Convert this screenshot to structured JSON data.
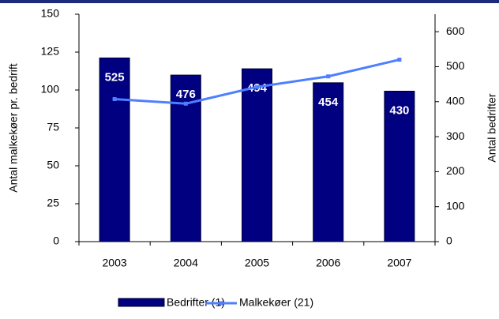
{
  "chart_data": {
    "type": "combo",
    "categories": [
      "2003",
      "2004",
      "2005",
      "2006",
      "2007"
    ],
    "series": [
      {
        "name": "Bedrifter (1)",
        "type": "bar",
        "axis": "y2",
        "color": "#000080",
        "values": [
          525,
          476,
          494,
          454,
          430
        ]
      },
      {
        "name": "Malkekøer (21)",
        "type": "line",
        "axis": "y",
        "color": "#4d7fff",
        "values": [
          94,
          91,
          102,
          109,
          120
        ]
      }
    ],
    "ylabel": "Antal malkekøer pr. bedrift",
    "y2label": "Antal bedrifter",
    "ylim": [
      0,
      150
    ],
    "yticks": [
      0,
      25,
      50,
      75,
      100,
      125,
      150
    ],
    "y2lim": [
      0,
      650
    ],
    "y2ticks": [
      0,
      100,
      200,
      300,
      400,
      500,
      600
    ],
    "grid": false,
    "legend": "bottom"
  }
}
